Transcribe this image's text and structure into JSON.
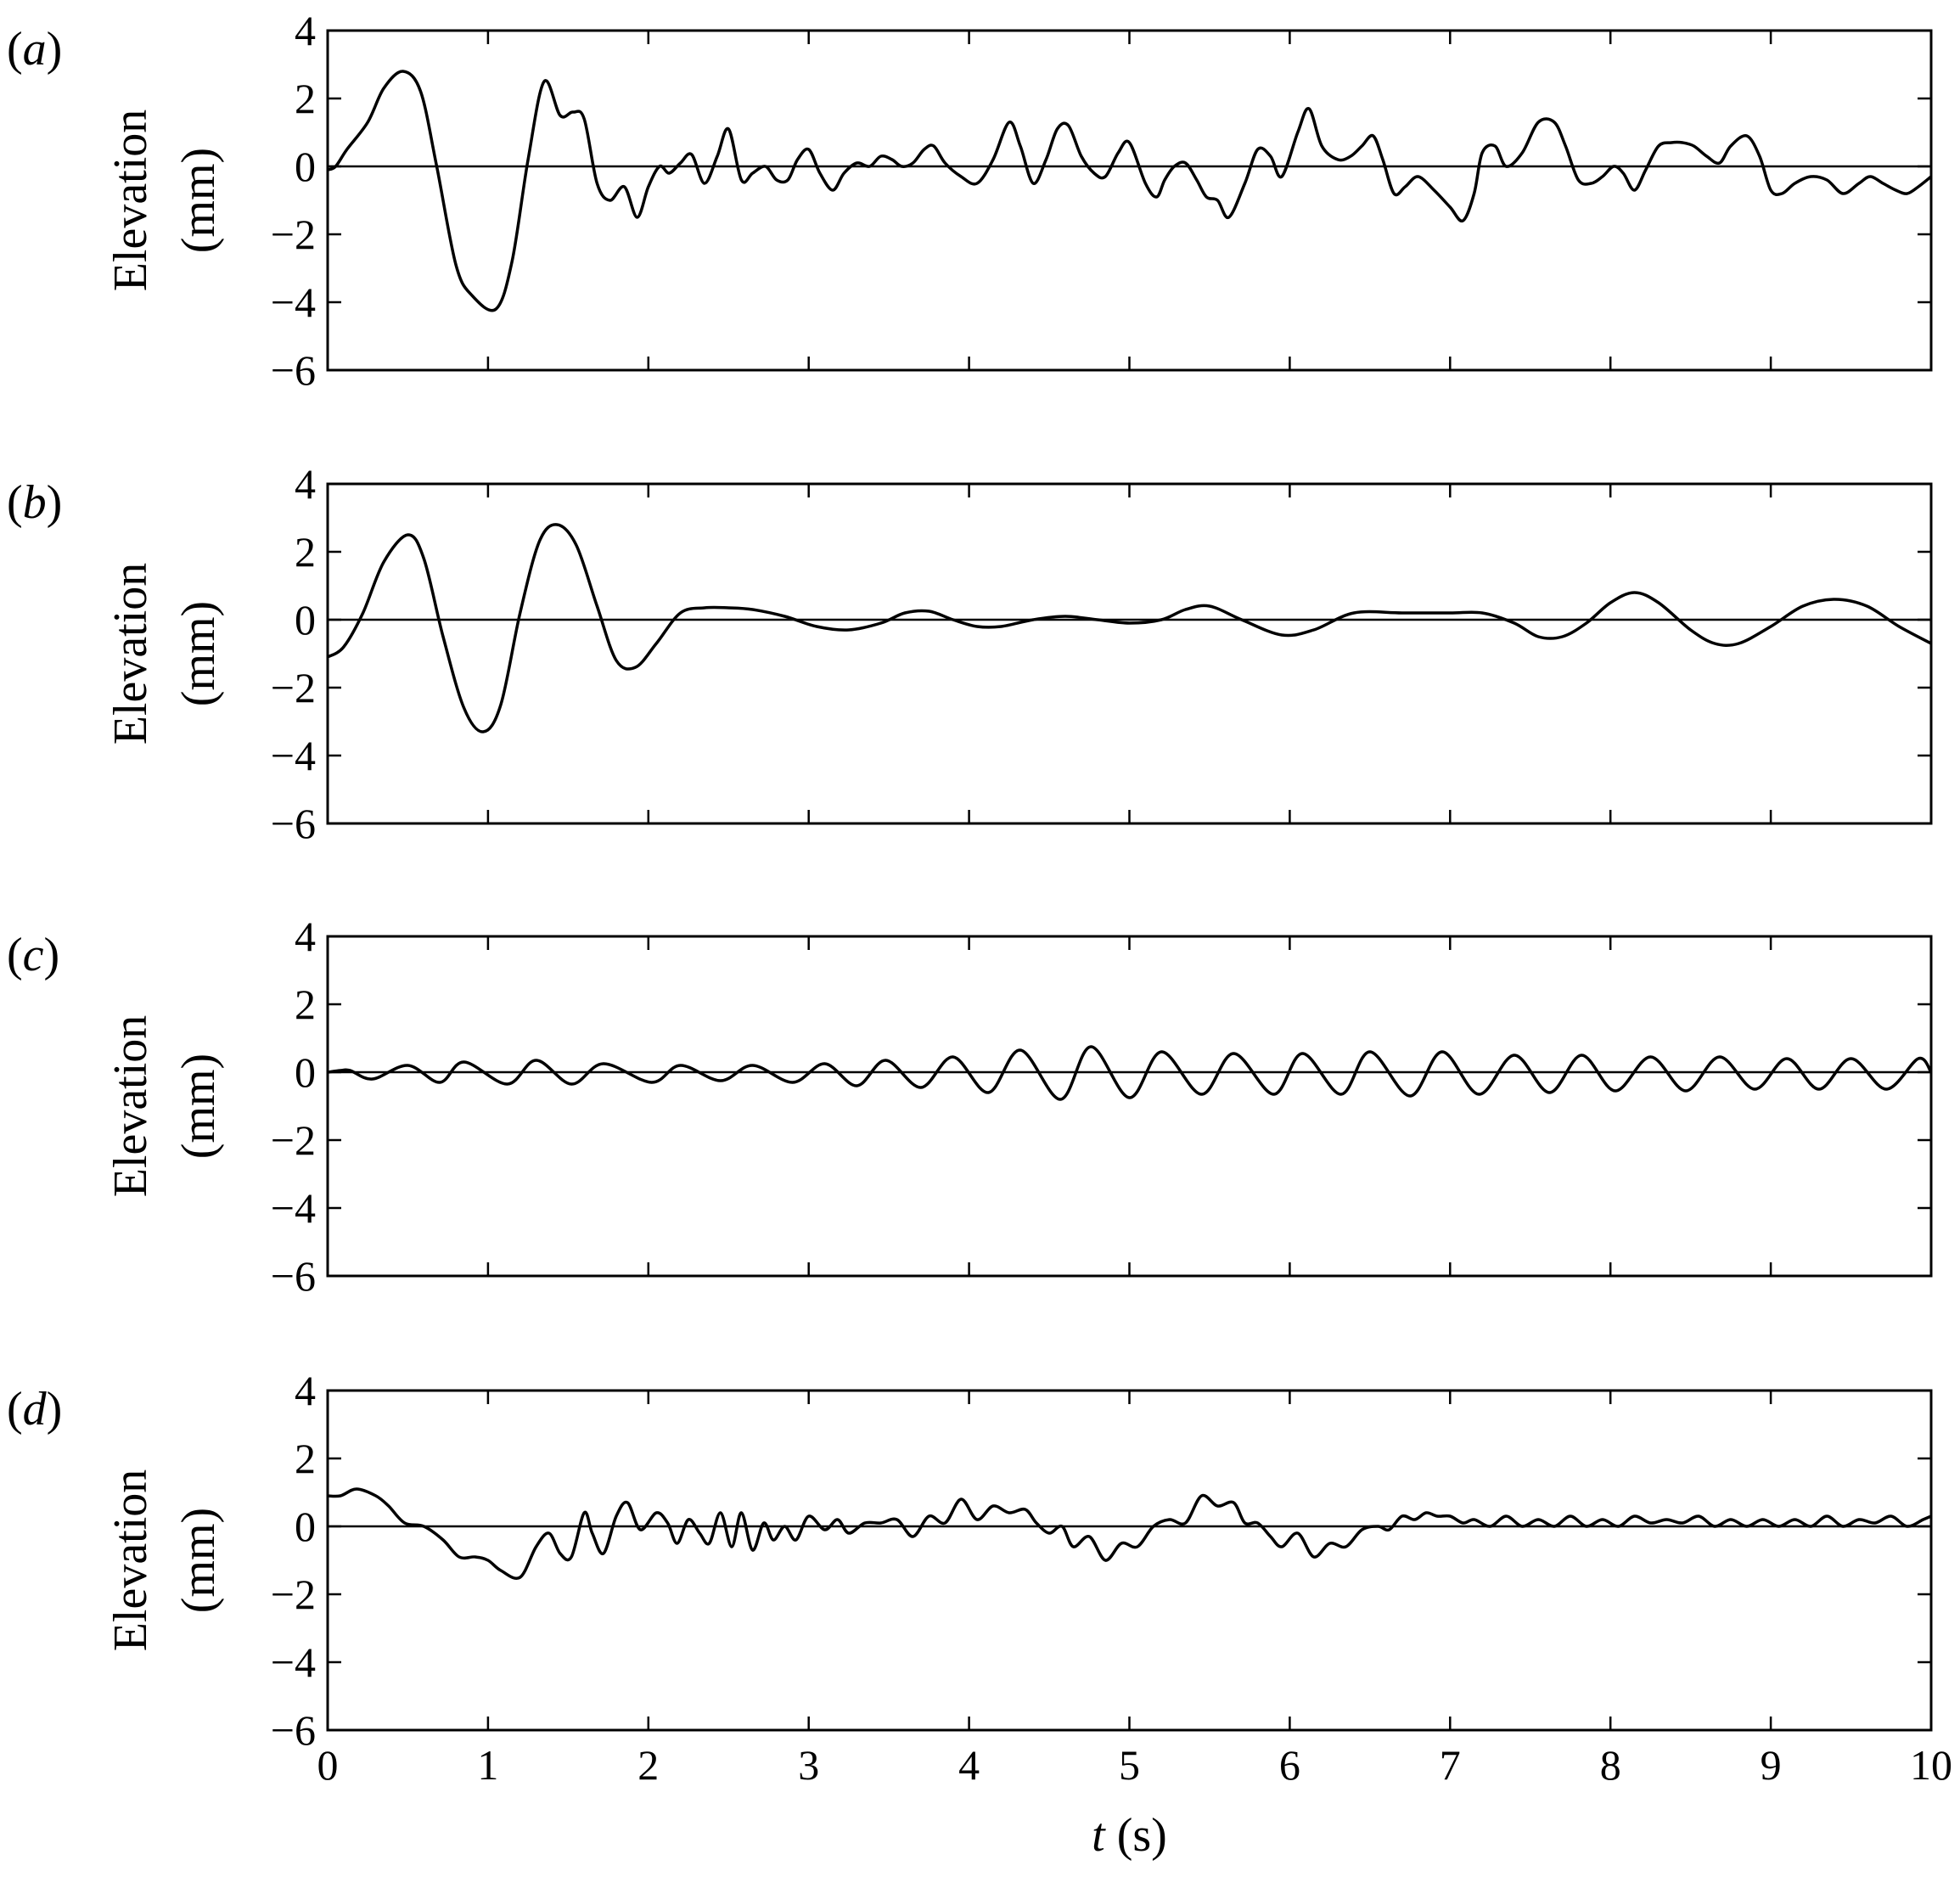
{
  "chart_data": [
    {
      "type": "line",
      "panel_label": "a",
      "ylabel_line1": "Elevation",
      "ylabel_line2": "(mm)",
      "xlim": [
        0,
        10
      ],
      "ylim": [
        -6,
        4
      ],
      "xticks": [
        0,
        1,
        2,
        3,
        4,
        5,
        6,
        7,
        8,
        9,
        10
      ],
      "yticks": [
        4,
        2,
        0,
        -2,
        -4,
        -6
      ],
      "ytick_labels": [
        "4",
        "2",
        "0",
        "−2",
        "−4",
        "−6"
      ],
      "zero_line": true,
      "series": [
        {
          "x": [
            0,
            0.05,
            0.12,
            0.25,
            0.35,
            0.47,
            0.58,
            0.68,
            0.8,
            0.9,
            1.05,
            1.15,
            1.25,
            1.35,
            1.45,
            1.53,
            1.6,
            1.68,
            1.76,
            1.85,
            1.93,
            2.0,
            2.07,
            2.13,
            2.2,
            2.27,
            2.35,
            2.43,
            2.5,
            2.58,
            2.65,
            2.73,
            2.8,
            2.87,
            2.93,
            3.0,
            3.07,
            3.15,
            3.22,
            3.3,
            3.38,
            3.45,
            3.52,
            3.58,
            3.65,
            3.72,
            3.78,
            3.85,
            3.95,
            4.05,
            4.15,
            4.25,
            4.32,
            4.4,
            4.48,
            4.55,
            4.62,
            4.7,
            4.78,
            4.85,
            4.93,
            5.0,
            5.1,
            5.17,
            5.22,
            5.28,
            5.35,
            5.42,
            5.48,
            5.55,
            5.62,
            5.72,
            5.8,
            5.88,
            5.95,
            6.05,
            6.12,
            6.2,
            6.3,
            6.38,
            6.45,
            6.52,
            6.58,
            6.65,
            6.72,
            6.8,
            6.9,
            7.0,
            7.08,
            7.15,
            7.2,
            7.28,
            7.35,
            7.45,
            7.55,
            7.65,
            7.72,
            7.8,
            7.88,
            7.95,
            8.02,
            8.08,
            8.15,
            8.22,
            8.3,
            8.38,
            8.45,
            8.52,
            8.6,
            8.68,
            8.75,
            8.85,
            8.93,
            9.0,
            9.07,
            9.15,
            9.25,
            9.35,
            9.45,
            9.55,
            9.62,
            9.7,
            9.78,
            9.85,
            9.92,
            10.0
          ],
          "y": [
            -0.1,
            0.0,
            0.5,
            1.3,
            2.3,
            2.8,
            2.2,
            0.0,
            -2.9,
            -3.8,
            -4.2,
            -2.8,
            0.2,
            2.5,
            1.5,
            1.6,
            1.4,
            -0.5,
            -1.0,
            -0.6,
            -1.5,
            -0.6,
            0.0,
            -0.2,
            0.1,
            0.35,
            -0.5,
            0.3,
            1.1,
            -0.4,
            -0.2,
            0.0,
            -0.4,
            -0.4,
            0.2,
            0.5,
            -0.2,
            -0.7,
            -0.2,
            0.1,
            0.0,
            0.3,
            0.2,
            0.0,
            0.1,
            0.5,
            0.6,
            0.1,
            -0.3,
            -0.5,
            0.2,
            1.3,
            0.6,
            -0.5,
            0.2,
            1.1,
            1.2,
            0.3,
            -0.2,
            -0.3,
            0.4,
            0.7,
            -0.5,
            -0.9,
            -0.4,
            0.0,
            0.1,
            -0.4,
            -0.9,
            -1.0,
            -1.5,
            -0.5,
            0.5,
            0.3,
            -0.3,
            1.0,
            1.7,
            0.6,
            0.2,
            0.3,
            0.6,
            0.9,
            0.2,
            -0.8,
            -0.6,
            -0.3,
            -0.7,
            -1.2,
            -1.6,
            -0.8,
            0.4,
            0.6,
            0.0,
            0.4,
            1.3,
            1.3,
            0.6,
            -0.4,
            -0.5,
            -0.3,
            0.0,
            -0.2,
            -0.7,
            -0.1,
            0.6,
            0.7,
            0.7,
            0.6,
            0.3,
            0.1,
            0.6,
            0.9,
            0.3,
            -0.7,
            -0.8,
            -0.5,
            -0.3,
            -0.4,
            -0.8,
            -0.5,
            -0.3,
            -0.5,
            -0.7,
            -0.8,
            -0.6,
            -0.3
          ]
        }
      ]
    },
    {
      "type": "line",
      "panel_label": "b",
      "ylabel_line1": "Elevation",
      "ylabel_line2": "(mm)",
      "xlim": [
        0,
        10
      ],
      "ylim": [
        -6,
        4
      ],
      "xticks": [
        0,
        1,
        2,
        3,
        4,
        5,
        6,
        7,
        8,
        9,
        10
      ],
      "yticks": [
        4,
        2,
        0,
        -2,
        -4,
        -6
      ],
      "ytick_labels": [
        "4",
        "2",
        "0",
        "−2",
        "−4",
        "−6"
      ],
      "zero_line": true,
      "series": [
        {
          "x": [
            0,
            0.1,
            0.22,
            0.35,
            0.5,
            0.6,
            0.72,
            0.85,
            0.97,
            1.08,
            1.2,
            1.32,
            1.43,
            1.55,
            1.68,
            1.8,
            1.92,
            2.05,
            2.2,
            2.35,
            2.5,
            2.65,
            2.85,
            3.05,
            3.25,
            3.45,
            3.6,
            3.75,
            3.9,
            4.05,
            4.2,
            4.4,
            4.6,
            4.8,
            5.0,
            5.2,
            5.35,
            5.5,
            5.7,
            5.95,
            6.15,
            6.4,
            6.7,
            7.0,
            7.2,
            7.4,
            7.55,
            7.7,
            7.85,
            8.0,
            8.15,
            8.3,
            8.5,
            8.65,
            8.8,
            9.0,
            9.2,
            9.4,
            9.6,
            9.8,
            10.0
          ],
          "y": [
            -1.1,
            -0.8,
            0.2,
            1.7,
            2.5,
            1.8,
            -0.5,
            -2.6,
            -3.3,
            -2.5,
            0.2,
            2.3,
            2.8,
            2.2,
            0.4,
            -1.2,
            -1.4,
            -0.7,
            0.2,
            0.35,
            0.35,
            0.3,
            0.1,
            -0.2,
            -0.3,
            -0.1,
            0.2,
            0.25,
            0.0,
            -0.2,
            -0.2,
            0.0,
            0.1,
            0.0,
            -0.1,
            0.0,
            0.3,
            0.4,
            0.0,
            -0.45,
            -0.3,
            0.2,
            0.2,
            0.2,
            0.2,
            -0.1,
            -0.5,
            -0.5,
            -0.1,
            0.5,
            0.8,
            0.5,
            -0.3,
            -0.7,
            -0.7,
            -0.2,
            0.4,
            0.6,
            0.4,
            -0.2,
            -0.7
          ]
        }
      ]
    },
    {
      "type": "line",
      "panel_label": "c",
      "ylabel_line1": "Elevation",
      "ylabel_line2": "(mm)",
      "xlim": [
        0,
        10
      ],
      "ylim": [
        -6,
        4
      ],
      "xticks": [
        0,
        1,
        2,
        3,
        4,
        5,
        6,
        7,
        8,
        9,
        10
      ],
      "yticks": [
        4,
        2,
        0,
        -2,
        -4,
        -6
      ],
      "ytick_labels": [
        "4",
        "2",
        "0",
        "−2",
        "−4",
        "−6"
      ],
      "zero_line": true,
      "series": [
        {
          "x": [
            0,
            0.08,
            0.14,
            0.28,
            0.5,
            0.7,
            0.85,
            1.12,
            1.3,
            1.52,
            1.72,
            2.02,
            2.2,
            2.45,
            2.65,
            2.9,
            3.1,
            3.3,
            3.48,
            3.7,
            3.9,
            4.12,
            4.32,
            4.57,
            4.76,
            5.0,
            5.2,
            5.45,
            5.65,
            5.9,
            6.08,
            6.32,
            6.5,
            6.75,
            6.95,
            7.18,
            7.4,
            7.62,
            7.82,
            8.03,
            8.25,
            8.47,
            8.68,
            8.9,
            9.1,
            9.3,
            9.5,
            9.72,
            9.92,
            10.0
          ],
          "y": [
            0.0,
            0.05,
            0.05,
            -0.2,
            0.2,
            -0.3,
            0.3,
            -0.35,
            0.35,
            -0.35,
            0.25,
            -0.3,
            0.2,
            -0.25,
            0.2,
            -0.3,
            0.25,
            -0.4,
            0.35,
            -0.45,
            0.45,
            -0.6,
            0.65,
            -0.8,
            0.75,
            -0.75,
            0.6,
            -0.65,
            0.55,
            -0.65,
            0.55,
            -0.65,
            0.6,
            -0.7,
            0.6,
            -0.65,
            0.5,
            -0.6,
            0.5,
            -0.55,
            0.45,
            -0.55,
            0.45,
            -0.5,
            0.4,
            -0.5,
            0.4,
            -0.5,
            0.4,
            0.0
          ]
        }
      ]
    },
    {
      "type": "line",
      "panel_label": "d",
      "ylabel_line1": "Elevation",
      "ylabel_line2": "(mm)",
      "xlim": [
        0,
        10
      ],
      "ylim": [
        -6,
        4
      ],
      "xticks": [
        0,
        1,
        2,
        3,
        4,
        5,
        6,
        7,
        8,
        9,
        10
      ],
      "yticks": [
        4,
        2,
        0,
        -2,
        -4,
        -6
      ],
      "ytick_labels": [
        "4",
        "2",
        "0",
        "−2",
        "−4",
        "−6"
      ],
      "xtick_labels": [
        "0",
        "1",
        "2",
        "3",
        "4",
        "5",
        "6",
        "7",
        "8",
        "9",
        "10"
      ],
      "xlabel_var": "t",
      "xlabel_unit": " (s)",
      "zero_line": true,
      "series": [
        {
          "x": [
            0,
            0.08,
            0.18,
            0.3,
            0.38,
            0.48,
            0.6,
            0.72,
            0.82,
            0.92,
            1.0,
            1.08,
            1.2,
            1.3,
            1.38,
            1.45,
            1.52,
            1.6,
            1.65,
            1.72,
            1.8,
            1.87,
            1.95,
            2.05,
            2.12,
            2.18,
            2.25,
            2.32,
            2.38,
            2.45,
            2.52,
            2.58,
            2.65,
            2.72,
            2.78,
            2.85,
            2.92,
            3.0,
            3.1,
            3.18,
            3.25,
            3.35,
            3.45,
            3.55,
            3.65,
            3.75,
            3.85,
            3.95,
            4.05,
            4.15,
            4.25,
            4.35,
            4.42,
            4.5,
            4.58,
            4.65,
            4.75,
            4.85,
            4.95,
            5.05,
            5.15,
            5.25,
            5.35,
            5.45,
            5.55,
            5.65,
            5.72,
            5.8,
            5.88,
            5.95,
            6.05,
            6.15,
            6.25,
            6.35,
            6.45,
            6.55,
            6.62,
            6.7,
            6.78,
            6.85,
            6.92,
            7.0,
            7.08,
            7.15,
            7.25,
            7.35,
            7.45,
            7.55,
            7.65,
            7.75,
            7.85,
            7.95,
            8.05,
            8.15,
            8.25,
            8.35,
            8.45,
            8.55,
            8.65,
            8.75,
            8.85,
            8.95,
            9.05,
            9.15,
            9.25,
            9.35,
            9.45,
            9.55,
            9.65,
            9.75,
            9.85,
            9.95,
            10.0
          ],
          "y": [
            0.9,
            0.9,
            1.1,
            0.9,
            0.6,
            0.1,
            0.0,
            -0.4,
            -0.9,
            -0.9,
            -1.0,
            -1.3,
            -1.5,
            -0.6,
            -0.2,
            -0.8,
            -0.9,
            0.4,
            -0.2,
            -0.8,
            0.3,
            0.7,
            -0.1,
            0.4,
            0.1,
            -0.5,
            0.2,
            -0.2,
            -0.5,
            0.4,
            -0.6,
            0.4,
            -0.7,
            0.1,
            -0.4,
            0.0,
            -0.4,
            0.3,
            -0.1,
            0.2,
            -0.2,
            0.1,
            0.1,
            0.2,
            -0.3,
            0.3,
            0.1,
            0.8,
            0.2,
            0.6,
            0.4,
            0.5,
            0.1,
            -0.2,
            0.0,
            -0.6,
            -0.3,
            -1.0,
            -0.5,
            -0.6,
            0.0,
            0.2,
            0.1,
            0.9,
            0.6,
            0.7,
            0.1,
            0.1,
            -0.3,
            -0.6,
            -0.2,
            -0.9,
            -0.5,
            -0.6,
            -0.1,
            0.0,
            -0.1,
            0.3,
            0.2,
            0.4,
            0.3,
            0.3,
            0.1,
            0.2,
            0.0,
            0.3,
            0.0,
            0.2,
            0.0,
            0.3,
            0.0,
            0.2,
            0.0,
            0.3,
            0.1,
            0.2,
            0.1,
            0.3,
            0.0,
            0.2,
            0.0,
            0.2,
            0.0,
            0.2,
            0.0,
            0.3,
            0.0,
            0.2,
            0.1,
            0.3,
            0.0,
            0.2,
            0.3
          ]
        }
      ]
    }
  ]
}
